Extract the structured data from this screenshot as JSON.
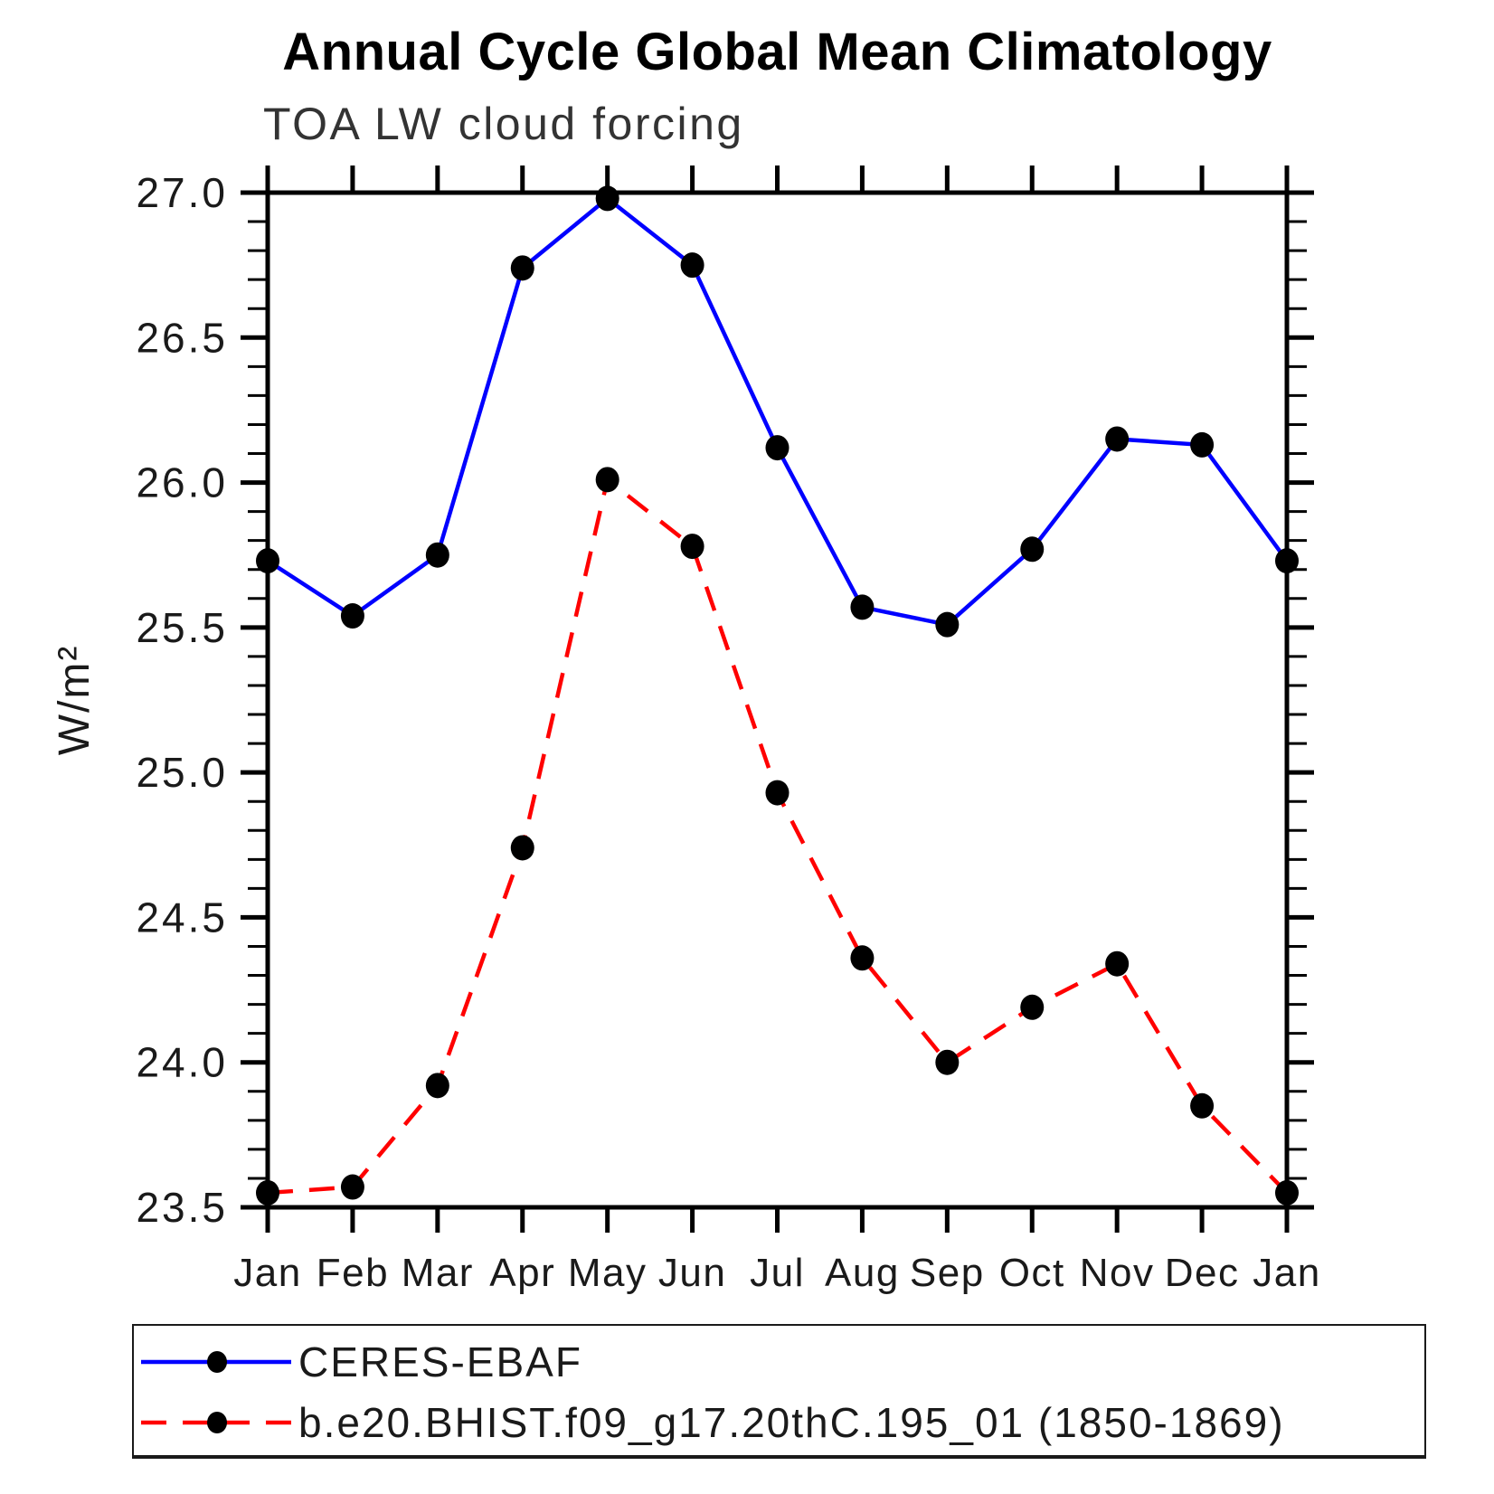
{
  "title": "Annual Cycle Global Mean Climatology",
  "subtitle": "TOA LW cloud forcing",
  "ylabel": "W/m²",
  "legend": {
    "entries": [
      {
        "label": "CERES-EBAF",
        "color": "#0000ff",
        "style": "solid",
        "marker_color": "#000000"
      },
      {
        "label": "b.e20.BHIST.f09_g17.20thC.195_01 (1850-1869)",
        "color": "#ff0000",
        "style": "dashed",
        "marker_color": "#000000"
      }
    ]
  },
  "chart_data": {
    "type": "line",
    "title": "Annual Cycle Global Mean Climatology",
    "subtitle": "TOA LW cloud forcing",
    "xlabel": "",
    "ylabel": "W/m²",
    "categories": [
      "Jan",
      "Feb",
      "Mar",
      "Apr",
      "May",
      "Jun",
      "Jul",
      "Aug",
      "Sep",
      "Oct",
      "Nov",
      "Dec",
      "Jan"
    ],
    "series": [
      {
        "name": "CERES-EBAF",
        "color": "#0000ff",
        "line_style": "solid",
        "marker": "filled-circle",
        "marker_color": "#000000",
        "values": [
          25.73,
          25.54,
          25.75,
          26.74,
          26.98,
          26.75,
          26.12,
          25.57,
          25.51,
          25.77,
          26.15,
          26.13,
          25.73
        ]
      },
      {
        "name": "b.e20.BHIST.f09_g17.20thC.195_01 (1850-1869)",
        "color": "#ff0000",
        "line_style": "dashed",
        "marker": "filled-circle",
        "marker_color": "#000000",
        "values": [
          23.55,
          23.57,
          23.92,
          24.74,
          26.01,
          25.78,
          24.93,
          24.36,
          24.0,
          24.19,
          24.34,
          23.85,
          23.55
        ]
      }
    ],
    "ylim": [
      23.5,
      27.0
    ],
    "y_major_ticks": [
      23.5,
      24.0,
      24.5,
      25.0,
      25.5,
      26.0,
      26.5,
      27.0
    ],
    "y_tick_labels": [
      "23.5",
      "24.0",
      "24.5",
      "25.0",
      "25.5",
      "26.0",
      "26.5",
      "27.0"
    ],
    "y_minor_step": 0.1,
    "grid": false,
    "legend_position": "bottom"
  }
}
